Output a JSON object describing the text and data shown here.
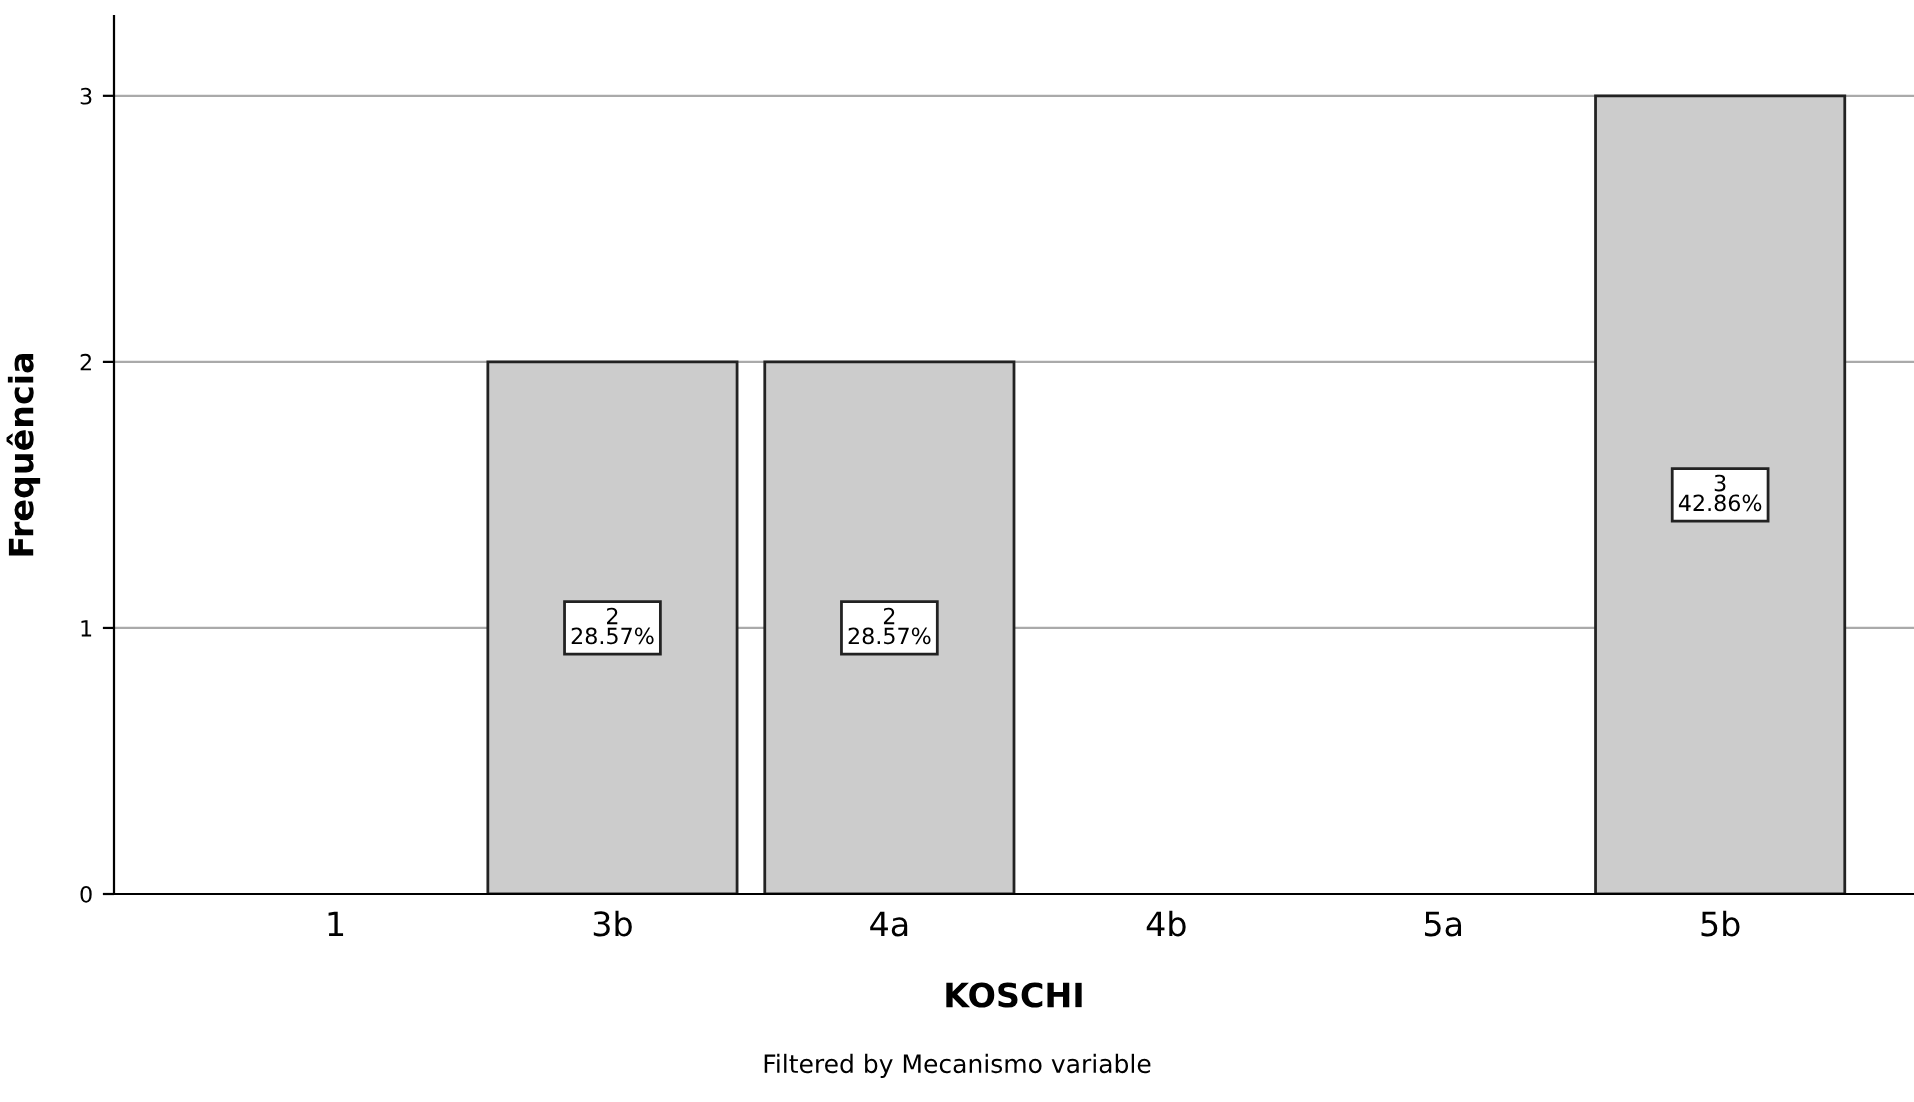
{
  "chart_data": {
    "type": "bar",
    "xlabel": "KOSCHI",
    "ylabel": "Frequência",
    "categories": [
      "1",
      "3b",
      "4a",
      "4b",
      "5a",
      "5b"
    ],
    "values": [
      0,
      2,
      2,
      0,
      0,
      3
    ],
    "value_labels": [
      null,
      "2\n28.57%",
      "2\n28.57%",
      null,
      null,
      "3\n42.86%"
    ],
    "color": "#cccccc",
    "ylim": [
      0,
      3.3
    ],
    "yticks": [
      0,
      1,
      2,
      3
    ],
    "grid": "y",
    "annotations": [
      "Filtered by Mecanismo variable"
    ]
  }
}
